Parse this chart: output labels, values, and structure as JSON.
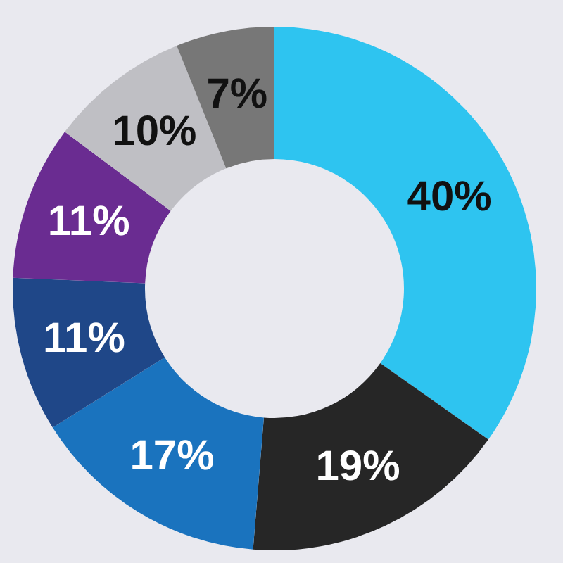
{
  "chart_data": {
    "type": "donut",
    "categories": [
      null,
      null,
      null,
      null,
      null,
      null,
      null
    ],
    "values": [
      40,
      19,
      17,
      11,
      11,
      10,
      7
    ],
    "value_labels": [
      "40%",
      "19%",
      "17%",
      "11%",
      "11%",
      "10%",
      "7%"
    ],
    "colors": [
      "#2ec4f0",
      "#262626",
      "#1a73be",
      "#1f4788",
      "#6a2c91",
      "#bfbfc4",
      "#777777"
    ],
    "legend": false
  }
}
